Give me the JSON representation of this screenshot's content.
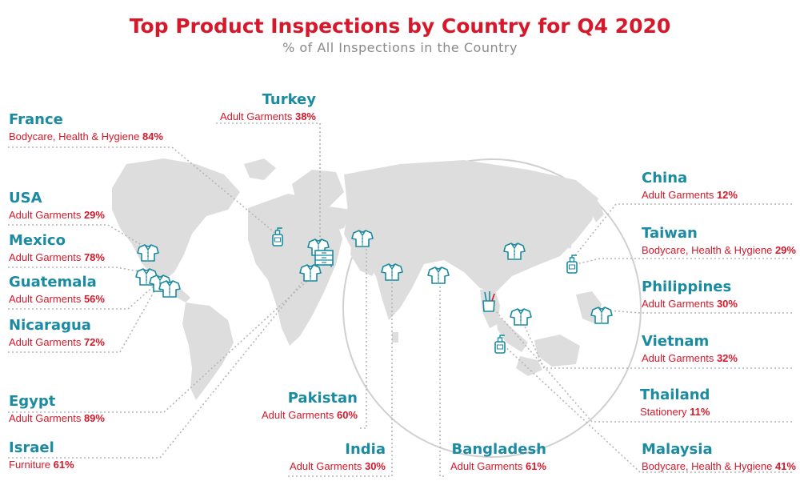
{
  "title": "Top Product Inspections by Country for Q4 2020",
  "subtitle": "% of All Inspections in the Country",
  "colors": {
    "title": "#d7182a",
    "country": "#1a8ba0",
    "detail": "#d7182a",
    "land": "#dcdcdc",
    "icon": "#1a8ba0",
    "leader": "#b5b5b5"
  },
  "countries": [
    {
      "key": "france",
      "name": "France",
      "category": "Bodycare, Health & Hygiene",
      "value": "84%",
      "icon": "soap-bottle-icon"
    },
    {
      "key": "usa",
      "name": "USA",
      "category": "Adult Garments",
      "value": "29%",
      "icon": "shirt-icon"
    },
    {
      "key": "mexico",
      "name": "Mexico",
      "category": "Adult Garments",
      "value": "78%",
      "icon": "shirt-icon"
    },
    {
      "key": "guatemala",
      "name": "Guatemala",
      "category": "Adult Garments",
      "value": "56%",
      "icon": "shirt-icon"
    },
    {
      "key": "nicaragua",
      "name": "Nicaragua",
      "category": "Adult Garments",
      "value": "72%",
      "icon": "shirt-icon"
    },
    {
      "key": "egypt",
      "name": "Egypt",
      "category": "Adult Garments",
      "value": "89%",
      "icon": "shirt-icon"
    },
    {
      "key": "israel",
      "name": "Israel",
      "category": "Furniture",
      "value": "61%",
      "icon": "dresser-icon"
    },
    {
      "key": "turkey",
      "name": "Turkey",
      "category": "Adult Garments",
      "value": "38%",
      "icon": "shirt-icon"
    },
    {
      "key": "pakistan",
      "name": "Pakistan",
      "category": "Adult Garments",
      "value": "60%",
      "icon": "shirt-icon"
    },
    {
      "key": "india",
      "name": "India",
      "category": "Adult Garments",
      "value": "30%",
      "icon": "shirt-icon"
    },
    {
      "key": "bangladesh",
      "name": "Bangladesh",
      "category": "Adult Garments",
      "value": "61%",
      "icon": "shirt-icon"
    },
    {
      "key": "china",
      "name": "China",
      "category": "Adult Garments",
      "value": "12%",
      "icon": "shirt-icon"
    },
    {
      "key": "taiwan",
      "name": "Taiwan",
      "category": "Bodycare, Health & Hygiene",
      "value": "29%",
      "icon": "soap-bottle-icon"
    },
    {
      "key": "philippines",
      "name": "Philippines",
      "category": "Adult Garments",
      "value": "30%",
      "icon": "shirt-icon"
    },
    {
      "key": "vietnam",
      "name": "Vietnam",
      "category": "Adult Garments",
      "value": "32%",
      "icon": "shirt-icon"
    },
    {
      "key": "thailand",
      "name": "Thailand",
      "category": "Stationery",
      "value": "11%",
      "icon": "pencil-cup-icon"
    },
    {
      "key": "malaysia",
      "name": "Malaysia",
      "category": "Bodycare, Health & Hygiene",
      "value": "41%",
      "icon": "soap-bottle-icon"
    }
  ]
}
